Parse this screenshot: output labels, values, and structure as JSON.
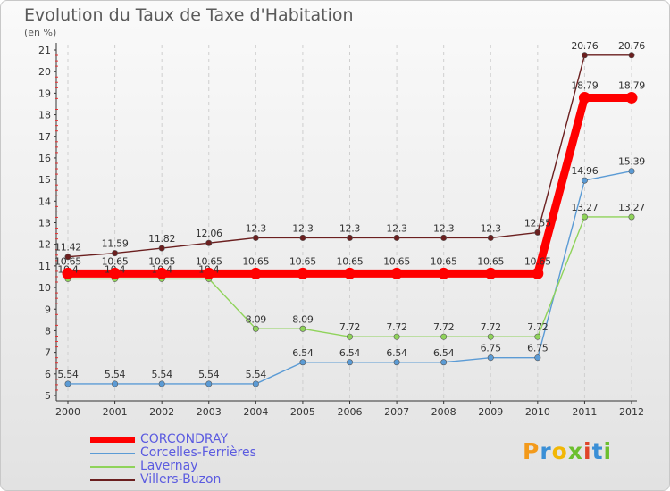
{
  "header": {
    "title": "Evolution du Taux de Taxe d'Habitation",
    "unit": "(en %)"
  },
  "logo": {
    "letters": [
      "P",
      "r",
      "o",
      "x",
      "i",
      "t",
      "i"
    ],
    "colors": [
      "#f39a1b",
      "#3a8fd6",
      "#f2b705",
      "#6cbf2e",
      "#e0442a",
      "#3a8fd6",
      "#6cbf2e"
    ]
  },
  "chart_data": {
    "type": "line",
    "x": [
      2000,
      2001,
      2002,
      2003,
      2004,
      2005,
      2006,
      2007,
      2008,
      2009,
      2010,
      2011,
      2012
    ],
    "ylim": [
      5,
      21
    ],
    "yticks": [
      5,
      6,
      7,
      8,
      9,
      10,
      11,
      12,
      13,
      14,
      15,
      16,
      17,
      18,
      19,
      20,
      21
    ],
    "grid": "vertical dashed",
    "legend_position": "bottom-left",
    "series": [
      {
        "name": "Villers-Buzon",
        "color": "#6b1f1f",
        "values": [
          11.42,
          11.59,
          11.82,
          12.06,
          12.3,
          12.3,
          12.3,
          12.3,
          12.3,
          12.3,
          12.55,
          20.76,
          20.76
        ],
        "labels": [
          "11.42",
          "11.59",
          "11.82",
          "12.06",
          "12.3",
          "12.3",
          "12.3",
          "12.3",
          "12.3",
          "12.3",
          "12.55",
          "20.76",
          "20.76"
        ]
      },
      {
        "name": "Corcelles-Ferrières",
        "color": "#5b9bd5",
        "values": [
          5.54,
          5.54,
          5.54,
          5.54,
          5.54,
          6.54,
          6.54,
          6.54,
          6.54,
          6.75,
          6.75,
          14.96,
          15.39
        ],
        "labels": [
          "5.54",
          "5.54",
          "5.54",
          "5.54",
          "5.54",
          "6.54",
          "6.54",
          "6.54",
          "6.54",
          "6.75",
          "6.75",
          "14.96",
          "15.39"
        ]
      },
      {
        "name": "Lavernay",
        "color": "#8fd35a",
        "values": [
          10.4,
          10.4,
          10.4,
          10.4,
          8.09,
          8.09,
          7.72,
          7.72,
          7.72,
          7.72,
          7.72,
          13.27,
          13.27
        ],
        "labels": [
          "10.4",
          "10.4",
          "10.4",
          "10.4",
          "8.09",
          "8.09",
          "7.72",
          "7.72",
          "7.72",
          "7.72",
          "7.72",
          "13.27",
          "13.27"
        ]
      },
      {
        "name": "CORCONDRAY",
        "color": "#ff0000",
        "values": [
          10.65,
          10.65,
          10.65,
          10.65,
          10.65,
          10.65,
          10.65,
          10.65,
          10.65,
          10.65,
          10.65,
          18.79,
          18.79
        ],
        "labels": [
          "10.65",
          "10.65",
          "10.65",
          "10.65",
          "10.65",
          "10.65",
          "10.65",
          "10.65",
          "10.65",
          "10.65",
          "10.65",
          "18.79",
          "18.79"
        ]
      }
    ]
  },
  "legend": [
    {
      "label": "CORCONDRAY",
      "color": "#ff0000"
    },
    {
      "label": "Corcelles-Ferrières",
      "color": "#5b9bd5"
    },
    {
      "label": "Lavernay",
      "color": "#8fd35a"
    },
    {
      "label": "Villers-Buzon",
      "color": "#6b1f1f"
    }
  ]
}
